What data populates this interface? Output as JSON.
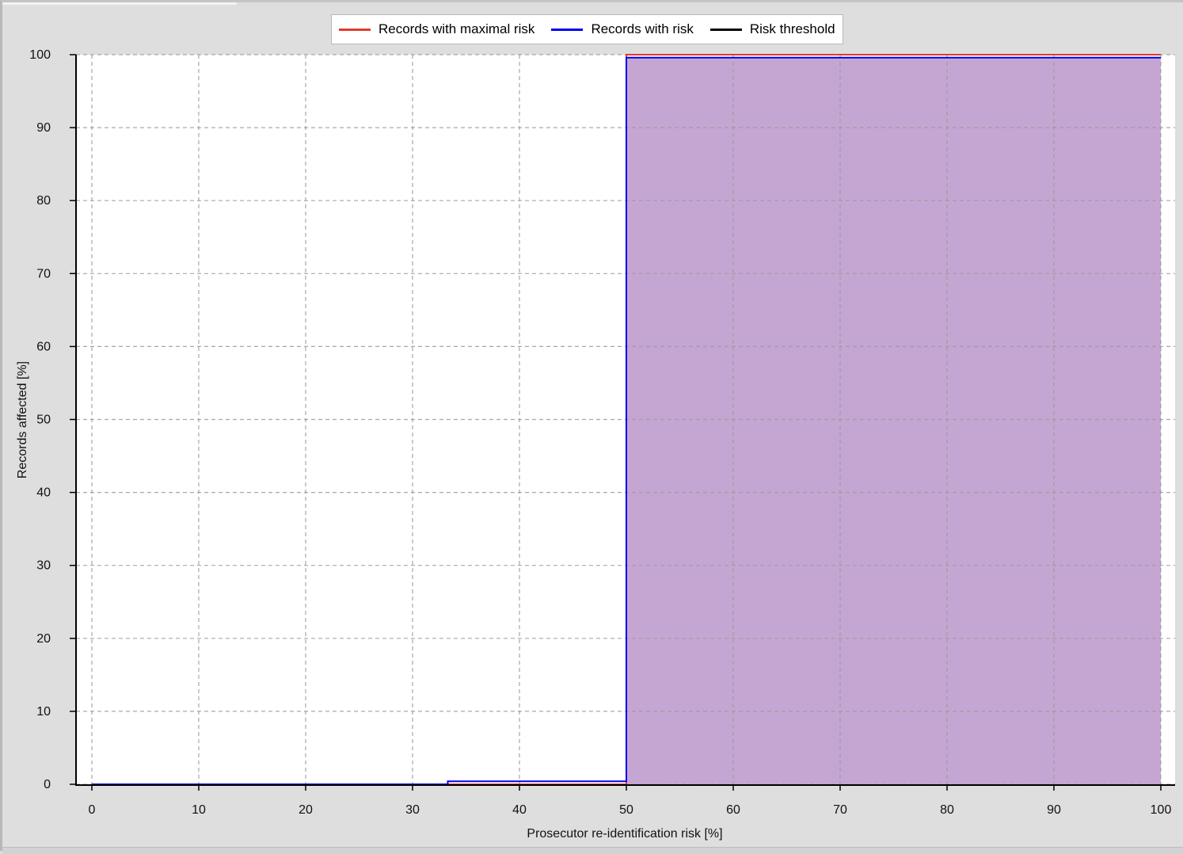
{
  "chart_data": {
    "type": "area",
    "title": "",
    "xlabel": "Prosecutor re-identification risk [%]",
    "ylabel": "Records affected [%]",
    "xlim": [
      0,
      100
    ],
    "ylim": [
      0,
      100
    ],
    "x_ticks": [
      "0",
      "10",
      "20",
      "30",
      "40",
      "50",
      "60",
      "70",
      "80",
      "90",
      "100"
    ],
    "y_ticks": [
      "0",
      "10",
      "20",
      "30",
      "40",
      "50",
      "60",
      "70",
      "80",
      "90",
      "100"
    ],
    "grid": true,
    "legend_placement": "top-center",
    "series": [
      {
        "name": "Records with maximal risk",
        "color": "#e03a2e",
        "step": true,
        "points": [
          [
            0,
            0
          ],
          [
            50,
            0
          ],
          [
            50,
            100
          ],
          [
            100,
            100
          ]
        ]
      },
      {
        "name": "Records with risk",
        "color": "#0000ee",
        "step": true,
        "points": [
          [
            0,
            0
          ],
          [
            33.3,
            0
          ],
          [
            33.3,
            0.4
          ],
          [
            50,
            0.4
          ],
          [
            50,
            99.6
          ],
          [
            100,
            99.6
          ]
        ]
      },
      {
        "name": "Risk threshold",
        "color": "#000000",
        "points": []
      }
    ],
    "fill": {
      "color": "#c5a6d2",
      "from_x": 50,
      "to_x": 100,
      "y": 99.6
    }
  }
}
